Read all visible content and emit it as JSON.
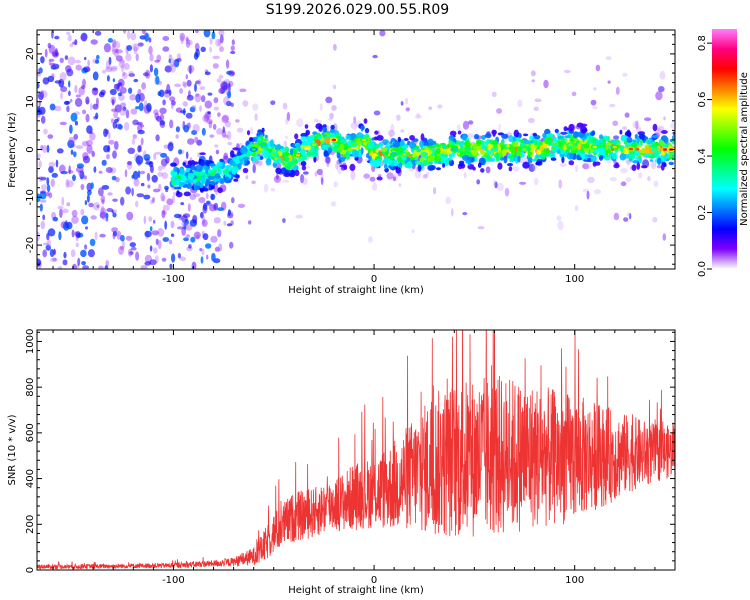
{
  "title": "S199.2026.029.00.55.R09",
  "chart_data": [
    {
      "type": "heatmap",
      "xlabel": "Height of straight line (km)",
      "ylabel": "Frequency (Hz)",
      "xlim": [
        -168,
        150
      ],
      "ylim": [
        -25,
        25
      ],
      "xticks": [
        -100,
        0,
        100
      ],
      "yticks": [
        -20,
        -10,
        0,
        10,
        20
      ],
      "xtick_labels": [
        "-100",
        "0",
        "100"
      ],
      "ytick_labels": [
        "-20",
        "-10",
        "0",
        "10",
        "20"
      ],
      "grid": false,
      "colorbar": {
        "label": "Normalized spectral amplitude",
        "min": 0.0,
        "max": 0.85,
        "ticks": [
          0.0,
          0.2,
          0.4,
          0.6,
          0.8
        ],
        "tick_labels": [
          "0.0",
          "0.2",
          "0.4",
          "0.6",
          "0.8"
        ],
        "colormap": [
          "#ff80ff",
          "#ff0080",
          "#ff0000",
          "#ff8000",
          "#ffff00",
          "#80ff00",
          "#00ff00",
          "#00ff80",
          "#00ffff",
          "#0080ff",
          "#0000ff",
          "#8000ff",
          "#ffffff"
        ]
      },
      "signal_track": {
        "description": "dominant frequency vs height",
        "height_km": [
          -100,
          -90,
          -80,
          -70,
          -65,
          -60,
          -55,
          -50,
          -45,
          -40,
          -35,
          -30,
          -25,
          -20,
          -15,
          -10,
          -5,
          0,
          10,
          20,
          30,
          40,
          50,
          60,
          70,
          80,
          90,
          100,
          110,
          120,
          130,
          140,
          150
        ],
        "frequency_hz": [
          -6,
          -6,
          -5,
          -4,
          -1,
          0,
          1,
          -1,
          -2,
          -2,
          0,
          1,
          2,
          2,
          0,
          1,
          2,
          -1,
          -1,
          -1,
          -1,
          0,
          0,
          0,
          0,
          0,
          1,
          1,
          0.5,
          0.5,
          0,
          0,
          0
        ]
      }
    },
    {
      "type": "line",
      "xlabel": "Height of straight line (km)",
      "ylabel": "SNR (10 * v/v)",
      "xlim": [
        -168,
        150
      ],
      "ylim": [
        0,
        1050
      ],
      "xticks": [
        -100,
        0,
        100
      ],
      "yticks": [
        0,
        200,
        400,
        600,
        800,
        1000
      ],
      "xtick_labels": [
        "-100",
        "0",
        "100"
      ],
      "ytick_labels": [
        "0",
        "200",
        "400",
        "600",
        "800",
        "1000"
      ],
      "series": [
        {
          "name": "SNR",
          "color": "#ee3333",
          "x": [
            -168,
            -150,
            -120,
            -100,
            -80,
            -70,
            -60,
            -55,
            -50,
            -45,
            -40,
            -35,
            -30,
            -25,
            -20,
            -15,
            -10,
            -5,
            0,
            10,
            20,
            30,
            40,
            50,
            60,
            70,
            80,
            90,
            100,
            110,
            120,
            130,
            140,
            150
          ],
          "center": [
            15,
            15,
            18,
            20,
            28,
            35,
            60,
            100,
            160,
            200,
            230,
            240,
            250,
            270,
            290,
            300,
            320,
            330,
            340,
            370,
            420,
            460,
            480,
            490,
            500,
            500,
            500,
            490,
            490,
            500,
            500,
            510,
            510,
            520
          ],
          "spread": [
            10,
            10,
            10,
            12,
            15,
            20,
            40,
            70,
            90,
            100,
            110,
            110,
            110,
            115,
            120,
            130,
            150,
            150,
            160,
            200,
            250,
            320,
            350,
            350,
            360,
            340,
            320,
            300,
            280,
            240,
            200,
            160,
            130,
            110
          ]
        }
      ]
    }
  ]
}
